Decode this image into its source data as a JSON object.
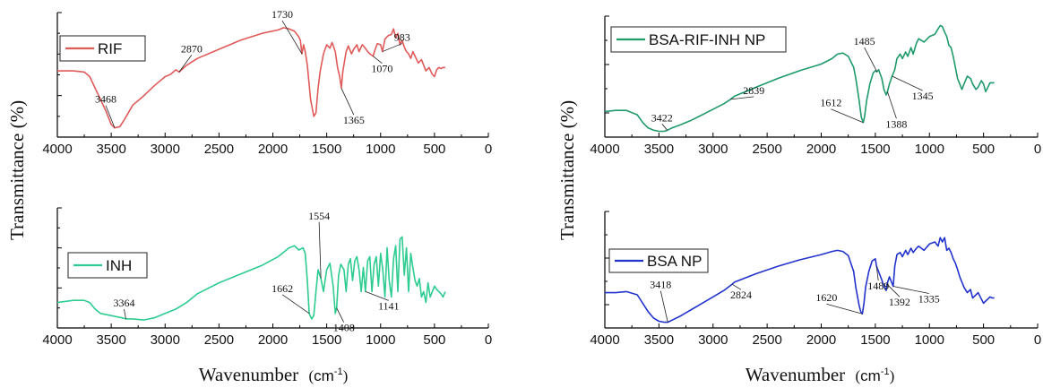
{
  "chart_data": [
    {
      "type": "line",
      "panel": "top-left",
      "series": [
        {
          "name": "RIF",
          "color": "#e05a5a",
          "x": [
            4000,
            3850,
            3750,
            3700,
            3650,
            3600,
            3550,
            3500,
            3468,
            3420,
            3380,
            3300,
            3200,
            3100,
            3000,
            2950,
            2900,
            2870,
            2800,
            2700,
            2500,
            2300,
            2100,
            1950,
            1900,
            1850,
            1800,
            1760,
            1745,
            1730,
            1715,
            1700,
            1680,
            1650,
            1620,
            1600,
            1580,
            1560,
            1530,
            1500,
            1470,
            1450,
            1420,
            1400,
            1380,
            1365,
            1350,
            1320,
            1300,
            1270,
            1250,
            1220,
            1200,
            1170,
            1150,
            1120,
            1100,
            1070,
            1050,
            1030,
            1000,
            983,
            960,
            930,
            900,
            880,
            860,
            840,
            820,
            800,
            780,
            760,
            740,
            720,
            700,
            680,
            650,
            620,
            600,
            580,
            550,
            520,
            500,
            480,
            460,
            440,
            420,
            400
          ],
          "y": [
            0.55,
            0.55,
            0.54,
            0.5,
            0.4,
            0.3,
            0.2,
            0.08,
            0.05,
            0.06,
            0.12,
            0.25,
            0.33,
            0.42,
            0.5,
            0.52,
            0.56,
            0.54,
            0.6,
            0.66,
            0.74,
            0.82,
            0.88,
            0.91,
            0.93,
            0.92,
            0.9,
            0.85,
            0.82,
            0.7,
            0.78,
            0.72,
            0.6,
            0.3,
            0.15,
            0.18,
            0.4,
            0.55,
            0.7,
            0.78,
            0.75,
            0.8,
            0.72,
            0.58,
            0.5,
            0.4,
            0.55,
            0.72,
            0.77,
            0.7,
            0.74,
            0.78,
            0.72,
            0.78,
            0.76,
            0.72,
            0.7,
            0.68,
            0.74,
            0.79,
            0.78,
            0.72,
            0.83,
            0.86,
            0.87,
            0.92,
            0.84,
            0.88,
            0.78,
            0.82,
            0.76,
            0.72,
            0.7,
            0.66,
            0.72,
            0.68,
            0.62,
            0.65,
            0.6,
            0.55,
            0.58,
            0.52,
            0.5,
            0.56,
            0.58,
            0.57,
            0.58,
            0.58
          ]
        }
      ],
      "xlim": [
        4000,
        0
      ],
      "xticks": [
        "4000",
        "3500",
        "3000",
        "2500",
        "2000",
        "1500",
        "1000",
        "500",
        "0"
      ],
      "annotations": [
        {
          "text": "3468",
          "x": 3468,
          "y": 0.05
        },
        {
          "text": "2870",
          "x": 2870,
          "y": 0.54
        },
        {
          "text": "1730",
          "x": 1730,
          "y": 0.7
        },
        {
          "text": "1365",
          "x": 1365,
          "y": 0.4
        },
        {
          "text": "1070",
          "x": 1070,
          "y": 0.68
        },
        {
          "text": "983",
          "x": 983,
          "y": 0.72
        }
      ]
    },
    {
      "type": "line",
      "panel": "bottom-left",
      "series": [
        {
          "name": "INH",
          "color": "#2ecc91",
          "x": [
            4000,
            3850,
            3750,
            3700,
            3650,
            3600,
            3500,
            3400,
            3364,
            3300,
            3200,
            3100,
            3000,
            2900,
            2800,
            2700,
            2500,
            2300,
            2100,
            1950,
            1850,
            1800,
            1760,
            1720,
            1700,
            1680,
            1662,
            1640,
            1620,
            1600,
            1580,
            1554,
            1530,
            1500,
            1470,
            1440,
            1420,
            1408,
            1390,
            1370,
            1340,
            1320,
            1300,
            1280,
            1260,
            1240,
            1220,
            1200,
            1180,
            1160,
            1141,
            1120,
            1100,
            1080,
            1060,
            1040,
            1020,
            1000,
            980,
            960,
            940,
            920,
            900,
            880,
            860,
            840,
            820,
            800,
            780,
            760,
            740,
            720,
            700,
            680,
            660,
            640,
            620,
            600,
            580,
            560,
            540,
            520,
            500,
            480,
            460,
            440,
            420,
            400
          ],
          "y": [
            0.2,
            0.22,
            0.22,
            0.2,
            0.14,
            0.1,
            0.08,
            0.06,
            0.05,
            0.05,
            0.04,
            0.06,
            0.1,
            0.14,
            0.2,
            0.28,
            0.38,
            0.46,
            0.54,
            0.62,
            0.7,
            0.72,
            0.68,
            0.7,
            0.65,
            0.4,
            0.1,
            0.05,
            0.08,
            0.3,
            0.5,
            0.42,
            0.3,
            0.5,
            0.56,
            0.35,
            0.1,
            0.15,
            0.45,
            0.55,
            0.5,
            0.3,
            0.55,
            0.6,
            0.4,
            0.58,
            0.62,
            0.5,
            0.3,
            0.52,
            0.3,
            0.58,
            0.62,
            0.3,
            0.55,
            0.62,
            0.35,
            0.65,
            0.5,
            0.25,
            0.7,
            0.4,
            0.25,
            0.6,
            0.72,
            0.3,
            0.78,
            0.8,
            0.45,
            0.7,
            0.3,
            0.65,
            0.52,
            0.4,
            0.35,
            0.42,
            0.25,
            0.3,
            0.2,
            0.38,
            0.25,
            0.3,
            0.35,
            0.32,
            0.3,
            0.28,
            0.25,
            0.3
          ]
        }
      ],
      "xlim": [
        4000,
        0
      ],
      "xticks": [
        "4000",
        "3500",
        "3000",
        "2500",
        "2000",
        "1500",
        "1000",
        "500",
        "0"
      ],
      "annotations": [
        {
          "text": "3364",
          "x": 3364,
          "y": 0.05
        },
        {
          "text": "1662",
          "x": 1662,
          "y": 0.1
        },
        {
          "text": "1554",
          "x": 1554,
          "y": 0.42
        },
        {
          "text": "1408",
          "x": 1408,
          "y": 0.15
        },
        {
          "text": "1141",
          "x": 1141,
          "y": 0.3
        }
      ]
    },
    {
      "type": "line",
      "panel": "top-right",
      "series": [
        {
          "name": "BSA-RIF-INH NP",
          "color": "#1f9a6b",
          "x": [
            4000,
            3900,
            3800,
            3700,
            3650,
            3600,
            3550,
            3500,
            3450,
            3422,
            3380,
            3300,
            3200,
            3100,
            3000,
            2900,
            2839,
            2800,
            2600,
            2400,
            2200,
            2000,
            1900,
            1850,
            1800,
            1750,
            1700,
            1680,
            1650,
            1630,
            1612,
            1600,
            1580,
            1550,
            1520,
            1500,
            1485,
            1470,
            1440,
            1420,
            1400,
            1388,
            1370,
            1345,
            1320,
            1300,
            1270,
            1250,
            1220,
            1200,
            1170,
            1150,
            1120,
            1100,
            1050,
            1000,
            950,
            920,
            900,
            880,
            860,
            840,
            820,
            800,
            780,
            760,
            740,
            720,
            700,
            680,
            650,
            620,
            600,
            570,
            550,
            520,
            500,
            480,
            460,
            440,
            420,
            400
          ],
          "y": [
            0.2,
            0.21,
            0.21,
            0.17,
            0.1,
            0.05,
            0.03,
            0.02,
            0.02,
            0.03,
            0.05,
            0.08,
            0.12,
            0.17,
            0.22,
            0.27,
            0.31,
            0.34,
            0.42,
            0.5,
            0.57,
            0.63,
            0.68,
            0.72,
            0.73,
            0.7,
            0.6,
            0.5,
            0.3,
            0.15,
            0.1,
            0.15,
            0.3,
            0.45,
            0.55,
            0.57,
            0.56,
            0.58,
            0.5,
            0.4,
            0.35,
            0.38,
            0.45,
            0.52,
            0.58,
            0.68,
            0.72,
            0.68,
            0.74,
            0.7,
            0.78,
            0.72,
            0.82,
            0.86,
            0.83,
            0.88,
            0.9,
            0.95,
            0.98,
            0.97,
            0.92,
            0.88,
            0.8,
            0.78,
            0.7,
            0.6,
            0.5,
            0.45,
            0.4,
            0.45,
            0.52,
            0.5,
            0.45,
            0.4,
            0.42,
            0.48,
            0.45,
            0.38,
            0.42,
            0.46,
            0.46,
            0.46
          ]
        }
      ],
      "xlim": [
        4000,
        0
      ],
      "xticks": [
        "4000",
        "3500",
        "3000",
        "2500",
        "2000",
        "1500",
        "1000",
        "500",
        "0"
      ],
      "annotations": [
        {
          "text": "3422",
          "x": 3422,
          "y": 0.03
        },
        {
          "text": "2839",
          "x": 2839,
          "y": 0.31
        },
        {
          "text": "1612",
          "x": 1612,
          "y": 0.1
        },
        {
          "text": "1485",
          "x": 1485,
          "y": 0.56
        },
        {
          "text": "1388",
          "x": 1388,
          "y": 0.38
        },
        {
          "text": "1345",
          "x": 1345,
          "y": 0.52
        }
      ]
    },
    {
      "type": "line",
      "panel": "bottom-right",
      "series": [
        {
          "name": "BSA NP",
          "color": "#2233cc",
          "x": [
            4000,
            3900,
            3800,
            3700,
            3650,
            3600,
            3550,
            3500,
            3450,
            3418,
            3380,
            3300,
            3200,
            3100,
            3000,
            2900,
            2824,
            2800,
            2600,
            2400,
            2200,
            2000,
            1900,
            1850,
            1800,
            1750,
            1700,
            1680,
            1650,
            1635,
            1620,
            1605,
            1590,
            1560,
            1530,
            1500,
            1489,
            1470,
            1440,
            1420,
            1400,
            1392,
            1370,
            1335,
            1320,
            1300,
            1270,
            1250,
            1220,
            1200,
            1170,
            1150,
            1120,
            1100,
            1050,
            1000,
            950,
            920,
            900,
            880,
            860,
            840,
            820,
            800,
            780,
            760,
            740,
            720,
            700,
            680,
            650,
            620,
            600,
            570,
            550,
            520,
            500,
            480,
            460,
            440,
            420,
            400
          ],
          "y": [
            0.3,
            0.3,
            0.31,
            0.28,
            0.2,
            0.12,
            0.06,
            0.03,
            0.02,
            0.02,
            0.04,
            0.08,
            0.14,
            0.2,
            0.26,
            0.32,
            0.38,
            0.4,
            0.48,
            0.55,
            0.61,
            0.66,
            0.69,
            0.7,
            0.69,
            0.65,
            0.5,
            0.35,
            0.18,
            0.12,
            0.1,
            0.2,
            0.35,
            0.5,
            0.6,
            0.62,
            0.55,
            0.5,
            0.42,
            0.36,
            0.32,
            0.38,
            0.45,
            0.36,
            0.55,
            0.66,
            0.68,
            0.64,
            0.7,
            0.66,
            0.72,
            0.68,
            0.72,
            0.74,
            0.7,
            0.76,
            0.78,
            0.74,
            0.82,
            0.78,
            0.82,
            0.7,
            0.72,
            0.68,
            0.62,
            0.58,
            0.52,
            0.45,
            0.4,
            0.35,
            0.3,
            0.33,
            0.25,
            0.28,
            0.3,
            0.24,
            0.2,
            0.22,
            0.24,
            0.26,
            0.25,
            0.25
          ]
        }
      ],
      "xlim": [
        4000,
        0
      ],
      "xticks": [
        "4000",
        "3500",
        "3000",
        "2500",
        "2000",
        "1500",
        "1000",
        "500",
        "0"
      ],
      "annotations": [
        {
          "text": "3418",
          "x": 3418,
          "y": 0.02
        },
        {
          "text": "2824",
          "x": 2824,
          "y": 0.38
        },
        {
          "text": "1620",
          "x": 1620,
          "y": 0.1
        },
        {
          "text": "1489",
          "x": 1489,
          "y": 0.55
        },
        {
          "text": "1392",
          "x": 1392,
          "y": 0.38
        },
        {
          "text": "1335",
          "x": 1335,
          "y": 0.36
        }
      ]
    }
  ],
  "labels": {
    "ylabel_left": "Transmittance (%)",
    "ylabel_right": "Transmittance (%)",
    "xlabel_left": "Wavenumber",
    "xlabel_right": "Wavenumber",
    "xunit_left": "cm",
    "xunit_right": "cm",
    "xunit_exp": "-1"
  }
}
